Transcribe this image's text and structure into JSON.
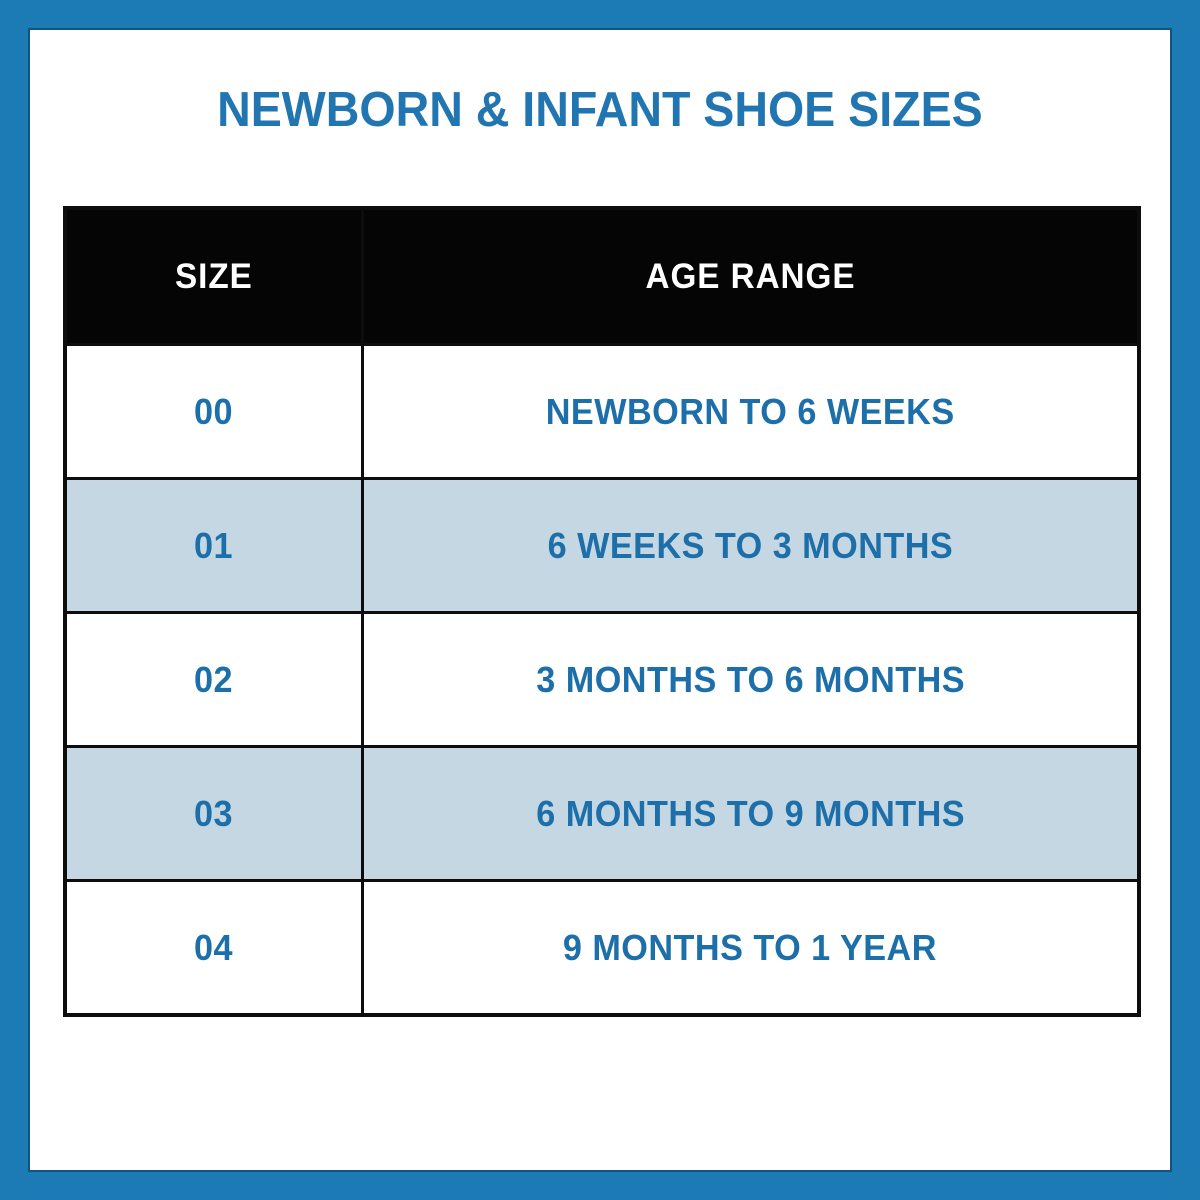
{
  "title": "NEWBORN & INFANT SHOE SIZES",
  "colors": {
    "frame_blue": "#1c7ab4",
    "frame_inner_edge": "#0e5681",
    "background": "#ffffff",
    "title_text": "#2176b1",
    "header_bg": "#050505",
    "header_text": "#ffffff",
    "cell_text": "#1d6fa9",
    "row_alt_bg": "#c5d7e3",
    "table_border": "#0d0d0d"
  },
  "table": {
    "columns": [
      {
        "label": "SIZE"
      },
      {
        "label": "AGE RANGE"
      }
    ],
    "rows": [
      {
        "size": "00",
        "age_range": "NEWBORN TO 6 WEEKS"
      },
      {
        "size": "01",
        "age_range": "6 WEEKS TO 3 MONTHS"
      },
      {
        "size": "02",
        "age_range": "3 MONTHS TO 6 MONTHS"
      },
      {
        "size": "03",
        "age_range": "6 MONTHS TO 9 MONTHS"
      },
      {
        "size": "04",
        "age_range": "9 MONTHS TO 1 YEAR"
      }
    ]
  },
  "chart_data": {
    "type": "table",
    "title": "NEWBORN & INFANT SHOE SIZES",
    "columns": [
      "SIZE",
      "AGE RANGE"
    ],
    "rows": [
      [
        "00",
        "NEWBORN TO 6 WEEKS"
      ],
      [
        "01",
        "6 WEEKS TO 3 MONTHS"
      ],
      [
        "02",
        "3 MONTHS TO 6 MONTHS"
      ],
      [
        "03",
        "6 MONTHS TO 9 MONTHS"
      ],
      [
        "04",
        "9 MONTHS TO 1 YEAR"
      ]
    ],
    "layout": {
      "header_style": "black band with white text",
      "row_striping": "white / light blue alternating starting with white",
      "grid": "heavy black cell borders",
      "legend": "none"
    }
  }
}
